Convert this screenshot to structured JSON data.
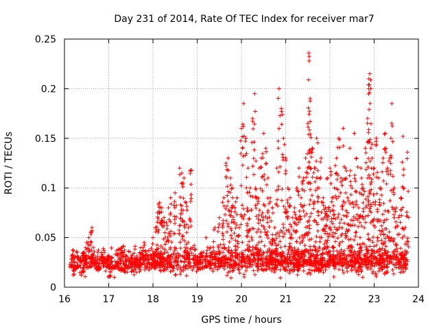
{
  "chart_data": {
    "type": "scatter",
    "title": "Day 231 of 2014, Rate Of TEC Index for receiver mar7",
    "xlabel": "GPS time / hours",
    "ylabel": "ROTI / TECUs",
    "xlim": [
      16,
      24
    ],
    "ylim": [
      0,
      0.25
    ],
    "xticks": [
      "16",
      "17",
      "18",
      "19",
      "20",
      "21",
      "22",
      "23",
      "24"
    ],
    "yticks": [
      "0",
      "0.05",
      "0.1",
      "0.15",
      "0.2",
      "0.25"
    ],
    "grid": true,
    "marker": "+",
    "series": [
      {
        "name": "ROTI",
        "color": "#ff0000",
        "points": [
          [
            16.15,
            0.025
          ],
          [
            16.2,
            0.03
          ],
          [
            16.25,
            0.018
          ],
          [
            16.3,
            0.022
          ],
          [
            16.35,
            0.028
          ],
          [
            16.4,
            0.015
          ],
          [
            16.45,
            0.035
          ],
          [
            16.5,
            0.045
          ],
          [
            16.55,
            0.05
          ],
          [
            16.6,
            0.055
          ],
          [
            16.62,
            0.06
          ],
          [
            16.65,
            0.04
          ],
          [
            16.7,
            0.025
          ],
          [
            16.75,
            0.02
          ],
          [
            16.8,
            0.018
          ],
          [
            16.85,
            0.03
          ],
          [
            16.9,
            0.035
          ],
          [
            16.95,
            0.028
          ],
          [
            17.0,
            0.022
          ],
          [
            17.1,
            0.02
          ],
          [
            17.2,
            0.025
          ],
          [
            17.3,
            0.018
          ],
          [
            17.4,
            0.022
          ],
          [
            17.5,
            0.03
          ],
          [
            17.6,
            0.025
          ],
          [
            17.7,
            0.02
          ],
          [
            17.8,
            0.045
          ],
          [
            17.9,
            0.03
          ],
          [
            18.0,
            0.05
          ],
          [
            18.05,
            0.06
          ],
          [
            18.1,
            0.075
          ],
          [
            18.15,
            0.085
          ],
          [
            18.2,
            0.08
          ],
          [
            18.25,
            0.07
          ],
          [
            18.3,
            0.065
          ],
          [
            18.35,
            0.08
          ],
          [
            18.4,
            0.09
          ],
          [
            18.5,
            0.095
          ],
          [
            18.6,
            0.12
          ],
          [
            18.65,
            0.115
          ],
          [
            18.7,
            0.11
          ],
          [
            18.75,
            0.085
          ],
          [
            18.8,
            0.06
          ],
          [
            18.85,
            0.118
          ],
          [
            18.9,
            0.04
          ],
          [
            19.0,
            0.03
          ],
          [
            19.1,
            0.035
          ],
          [
            19.2,
            0.05
          ],
          [
            19.3,
            0.04
          ],
          [
            19.4,
            0.06
          ],
          [
            19.5,
            0.07
          ],
          [
            19.6,
            0.09
          ],
          [
            19.65,
            0.125
          ],
          [
            19.7,
            0.13
          ],
          [
            19.75,
            0.11
          ],
          [
            19.8,
            0.1
          ],
          [
            19.85,
            0.08
          ],
          [
            19.9,
            0.09
          ],
          [
            19.95,
            0.06
          ],
          [
            20.0,
            0.16
          ],
          [
            20.05,
            0.185
          ],
          [
            20.1,
            0.15
          ],
          [
            20.15,
            0.12
          ],
          [
            20.2,
            0.1
          ],
          [
            20.25,
            0.17
          ],
          [
            20.3,
            0.195
          ],
          [
            20.35,
            0.09
          ],
          [
            20.4,
            0.12
          ],
          [
            20.45,
            0.13
          ],
          [
            20.5,
            0.155
          ],
          [
            20.55,
            0.14
          ],
          [
            20.6,
            0.11
          ],
          [
            20.65,
            0.09
          ],
          [
            20.7,
            0.08
          ],
          [
            20.75,
            0.06
          ],
          [
            20.8,
            0.12
          ],
          [
            20.85,
            0.2
          ],
          [
            20.9,
            0.18
          ],
          [
            20.95,
            0.15
          ],
          [
            21.0,
            0.13
          ],
          [
            21.05,
            0.1
          ],
          [
            21.1,
            0.09
          ],
          [
            21.15,
            0.07
          ],
          [
            21.2,
            0.08
          ],
          [
            21.25,
            0.1
          ],
          [
            21.3,
            0.12
          ],
          [
            21.35,
            0.09
          ],
          [
            21.4,
            0.11
          ],
          [
            21.45,
            0.13
          ],
          [
            21.5,
            0.165
          ],
          [
            21.52,
            0.236
          ],
          [
            21.53,
            0.228
          ],
          [
            21.55,
            0.19
          ],
          [
            21.6,
            0.14
          ],
          [
            21.65,
            0.12
          ],
          [
            21.7,
            0.15
          ],
          [
            21.75,
            0.1
          ],
          [
            21.8,
            0.13
          ],
          [
            21.85,
            0.09
          ],
          [
            21.9,
            0.08
          ],
          [
            21.95,
            0.11
          ],
          [
            22.0,
            0.12
          ],
          [
            22.05,
            0.09
          ],
          [
            22.1,
            0.1
          ],
          [
            22.15,
            0.13
          ],
          [
            22.2,
            0.15
          ],
          [
            22.25,
            0.11
          ],
          [
            22.3,
            0.16
          ],
          [
            22.35,
            0.12
          ],
          [
            22.4,
            0.09
          ],
          [
            22.45,
            0.14
          ],
          [
            22.5,
            0.1
          ],
          [
            22.55,
            0.155
          ],
          [
            22.6,
            0.13
          ],
          [
            22.65,
            0.08
          ],
          [
            22.7,
            0.12
          ],
          [
            22.75,
            0.1
          ],
          [
            22.8,
            0.14
          ],
          [
            22.85,
            0.17
          ],
          [
            22.88,
            0.21
          ],
          [
            22.9,
            0.215
          ],
          [
            22.92,
            0.2
          ],
          [
            22.95,
            0.13
          ],
          [
            23.0,
            0.12
          ],
          [
            23.05,
            0.15
          ],
          [
            23.1,
            0.11
          ],
          [
            23.15,
            0.1
          ],
          [
            23.2,
            0.13
          ],
          [
            23.25,
            0.155
          ],
          [
            23.3,
            0.12
          ],
          [
            23.35,
            0.13
          ],
          [
            23.4,
            0.185
          ],
          [
            23.45,
            0.1
          ],
          [
            23.5,
            0.08
          ],
          [
            23.55,
            0.07
          ],
          [
            23.6,
            0.09
          ],
          [
            23.65,
            0.152
          ],
          [
            23.7,
            0.06
          ],
          [
            23.75,
            0.136
          ]
        ],
        "baseline": {
          "description": "dense band of low values across the full time range",
          "x_range": [
            16.15,
            23.75
          ],
          "y_range": [
            0.008,
            0.045
          ]
        }
      }
    ]
  }
}
